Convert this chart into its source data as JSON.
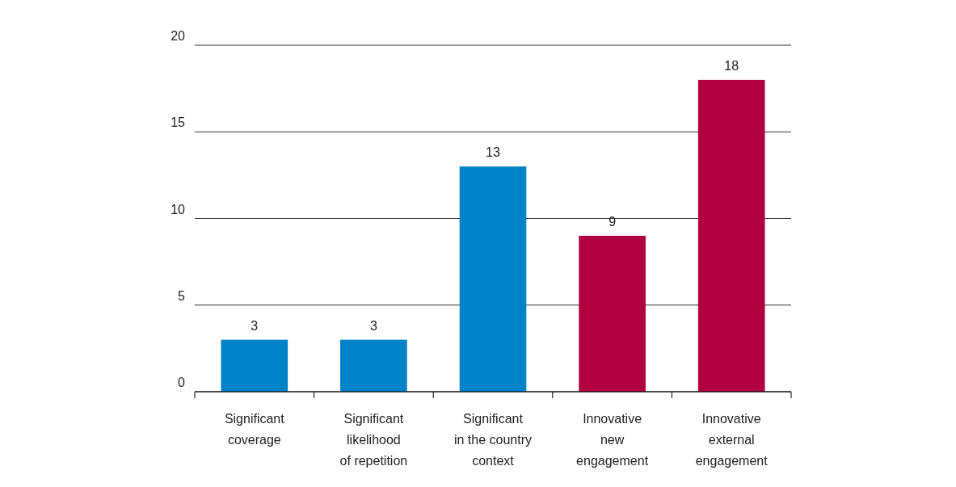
{
  "chart_data": {
    "type": "bar",
    "categories": [
      "Significant\ncoverage",
      "Significant\nlikelihood\nof repetition",
      "Significant\nin the country\ncontext",
      "Innovative\nnew\nengagement",
      "Innovative\nexternal\nengagement"
    ],
    "values": [
      3,
      3,
      13,
      9,
      18
    ],
    "colors": [
      "#0082c8",
      "#0082c8",
      "#0082c8",
      "#b00040",
      "#b00040"
    ],
    "ylim": [
      0,
      20
    ],
    "yticks": [
      0,
      5,
      10,
      15,
      20
    ],
    "grid": "y",
    "data_labels": true
  }
}
